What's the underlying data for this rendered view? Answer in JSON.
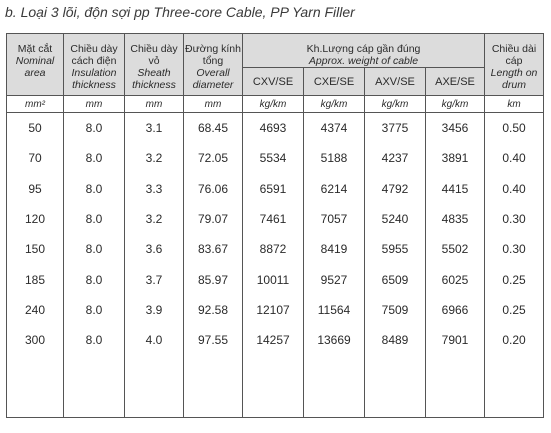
{
  "title": "b. Loại 3 lõi, độn sợi pp  Three-core Cable, PP Yarn Filler",
  "headers": {
    "nominal_area": {
      "vi": "Mặt cắt",
      "en": "Nominal area"
    },
    "insulation": {
      "vi": "Chiều dày cách điện",
      "en": "Insulation thickness"
    },
    "sheath": {
      "vi": "Chiều dày vỏ",
      "en": "Sheath thickness"
    },
    "diameter": {
      "vi": "Đường kính tổng",
      "en": "Overall diameter"
    },
    "weight": {
      "vi": "Kh.Lượng cáp gần đúng",
      "en": "Approx. weight of cable"
    },
    "length": {
      "vi": "Chiều dài cáp",
      "en": "Length on drum"
    }
  },
  "weight_types": [
    "CXV/SE",
    "CXE/SE",
    "AXV/SE",
    "AXE/SE"
  ],
  "units": [
    "mm²",
    "mm",
    "mm",
    "mm",
    "kg/km",
    "kg/km",
    "kg/km",
    "kg/km",
    "km"
  ],
  "rows": [
    [
      "50",
      "8.0",
      "3.1",
      "68.45",
      "4693",
      "4374",
      "3775",
      "3456",
      "0.50"
    ],
    [
      "70",
      "8.0",
      "3.2",
      "72.05",
      "5534",
      "5188",
      "4237",
      "3891",
      "0.40"
    ],
    [
      "95",
      "8.0",
      "3.3",
      "76.06",
      "6591",
      "6214",
      "4792",
      "4415",
      "0.40"
    ],
    [
      "120",
      "8.0",
      "3.2",
      "79.07",
      "7461",
      "7057",
      "5240",
      "4835",
      "0.30"
    ],
    [
      "150",
      "8.0",
      "3.6",
      "83.67",
      "8872",
      "8419",
      "5955",
      "5502",
      "0.30"
    ],
    [
      "185",
      "8.0",
      "3.7",
      "85.97",
      "10011",
      "9527",
      "6509",
      "6025",
      "0.25"
    ],
    [
      "240",
      "8.0",
      "3.9",
      "92.58",
      "12107",
      "11564",
      "7509",
      "6966",
      "0.25"
    ],
    [
      "300",
      "8.0",
      "4.0",
      "97.55",
      "14257",
      "13669",
      "8489",
      "7901",
      "0.20"
    ]
  ]
}
